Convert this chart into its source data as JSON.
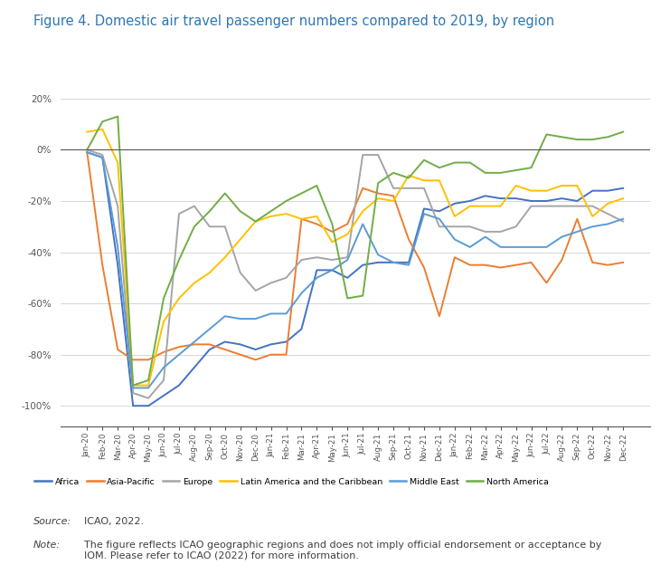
{
  "title": "Figure 4. Domestic air travel passenger numbers compared to 2019, by region",
  "ylim": [
    -108,
    22
  ],
  "yticks": [
    20,
    0,
    -20,
    -40,
    -60,
    -80,
    -100
  ],
  "ytick_labels": [
    "20%",
    "0%",
    "-20%",
    "-40%",
    "-60%",
    "-80%",
    "-100%"
  ],
  "background_color": "#ffffff",
  "legend_labels": [
    "Africa",
    "Asia-Pacific",
    "Europe",
    "Latin America and the Caribbean",
    "Middle East",
    "North America"
  ],
  "colors": {
    "Africa": "#4472C4",
    "Asia-Pacific": "#ED7D31",
    "Europe": "#A5A5A5",
    "Latin America and the Caribbean": "#FFC000",
    "Middle East": "#5B9BD5",
    "North America": "#70AD47"
  },
  "months": [
    "Jan-20",
    "Feb-20",
    "Mar-20",
    "Apr-20",
    "May-20",
    "Jun-20",
    "Jul-20",
    "Aug-20",
    "Sep-20",
    "Oct-20",
    "Nov-20",
    "Dec-20",
    "Jan-21",
    "Feb-21",
    "Mar-21",
    "Apr-21",
    "May-21",
    "Jun-21",
    "Jul-21",
    "Aug-21",
    "Sep-21",
    "Oct-21",
    "Nov-21",
    "Dec-21",
    "Jan-22",
    "Feb-22",
    "Mar-22",
    "Apr-22",
    "May-22",
    "Jun-22",
    "Jul-22",
    "Aug-22",
    "Sep-22",
    "Oct-22",
    "Nov-22",
    "Dec-22"
  ],
  "Africa": [
    -1,
    -3,
    -45,
    -100,
    -100,
    -96,
    -92,
    -85,
    -78,
    -75,
    -76,
    -78,
    -76,
    -75,
    -70,
    -47,
    -47,
    -50,
    -45,
    -44,
    -44,
    -44,
    -23,
    -24,
    -21,
    -20,
    -18,
    -19,
    -19,
    -20,
    -20,
    -19,
    -20,
    -16,
    -16,
    -15
  ],
  "Asia-Pacific": [
    -1,
    -45,
    -78,
    -82,
    -82,
    -79,
    -77,
    -76,
    -76,
    -78,
    -80,
    -82,
    -80,
    -80,
    -27,
    -29,
    -32,
    -29,
    -15,
    -17,
    -18,
    -35,
    -46,
    -65,
    -42,
    -45,
    -45,
    -46,
    -45,
    -44,
    -52,
    -43,
    -27,
    -44,
    -45,
    -44
  ],
  "Europe": [
    0,
    -2,
    -22,
    -95,
    -97,
    -90,
    -25,
    -22,
    -30,
    -30,
    -48,
    -55,
    -52,
    -50,
    -43,
    -42,
    -43,
    -42,
    -2,
    -2,
    -15,
    -15,
    -15,
    -30,
    -30,
    -30,
    -32,
    -32,
    -30,
    -22,
    -22,
    -22,
    -22,
    -22,
    -25,
    -28
  ],
  "Latin America and the Caribbean": [
    7,
    8,
    -5,
    -92,
    -92,
    -67,
    -58,
    -52,
    -48,
    -42,
    -35,
    -28,
    -26,
    -25,
    -27,
    -26,
    -36,
    -33,
    -24,
    -19,
    -20,
    -10,
    -12,
    -12,
    -26,
    -22,
    -22,
    -22,
    -14,
    -16,
    -16,
    -14,
    -14,
    -26,
    -21,
    -19
  ],
  "Middle East": [
    -1,
    -3,
    -38,
    -93,
    -93,
    -85,
    -80,
    -75,
    -70,
    -65,
    -66,
    -66,
    -64,
    -64,
    -56,
    -50,
    -47,
    -43,
    -29,
    -41,
    -44,
    -45,
    -25,
    -27,
    -35,
    -38,
    -34,
    -38,
    -38,
    -38,
    -38,
    -34,
    -32,
    -30,
    -29,
    -27
  ],
  "North America": [
    0,
    11,
    13,
    -92,
    -90,
    -58,
    -43,
    -30,
    -24,
    -17,
    -24,
    -28,
    -24,
    -20,
    -17,
    -14,
    -29,
    -58,
    -57,
    -13,
    -9,
    -11,
    -4,
    -7,
    -5,
    -5,
    -9,
    -9,
    -8,
    -7,
    6,
    5,
    4,
    4,
    5,
    7
  ]
}
